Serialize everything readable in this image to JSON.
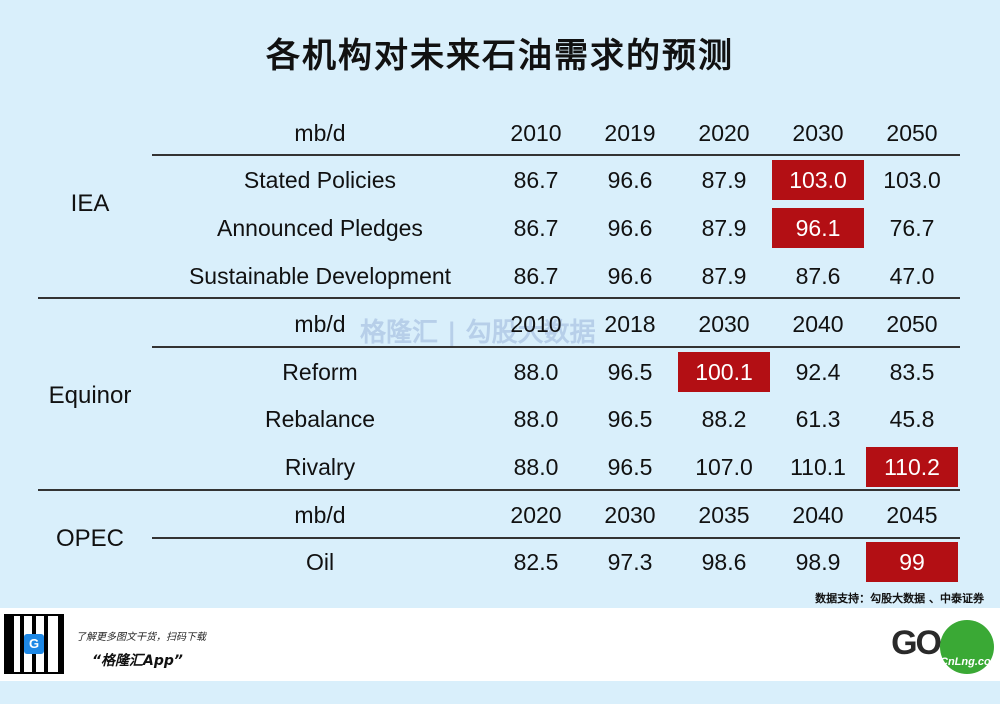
{
  "title": "各机构对未来石油需求的预测",
  "iea": {
    "group": "IEA",
    "header": {
      "label": "mb/d",
      "cols": [
        "2010",
        "2019",
        "2020",
        "2030",
        "2050"
      ]
    },
    "rows": [
      {
        "label": "Stated Policies",
        "values": [
          "86.7",
          "96.6",
          "87.9",
          "103.0",
          "103.0"
        ],
        "highlight": [
          3
        ]
      },
      {
        "label": "Announced Pledges",
        "values": [
          "86.7",
          "96.6",
          "87.9",
          "96.1",
          "76.7"
        ],
        "highlight": [
          3
        ]
      },
      {
        "label": "Sustainable Development",
        "values": [
          "86.7",
          "96.6",
          "87.9",
          "87.6",
          "47.0"
        ],
        "highlight": []
      }
    ]
  },
  "equinor": {
    "group": "Equinor",
    "header": {
      "label": "mb/d",
      "cols": [
        "2010",
        "2018",
        "2030",
        "2040",
        "2050"
      ]
    },
    "rows": [
      {
        "label": "Reform",
        "values": [
          "88.0",
          "96.5",
          "100.1",
          "92.4",
          "83.5"
        ],
        "highlight": [
          2
        ]
      },
      {
        "label": "Rebalance",
        "values": [
          "88.0",
          "96.5",
          "88.2",
          "61.3",
          "45.8"
        ],
        "highlight": []
      },
      {
        "label": "Rivalry",
        "values": [
          "88.0",
          "96.5",
          "107.0",
          "110.1",
          "110.2"
        ],
        "highlight": [
          4
        ]
      }
    ]
  },
  "opec": {
    "group": "OPEC",
    "header": {
      "label": "mb/d",
      "cols": [
        "2020",
        "2030",
        "2035",
        "2040",
        "2045"
      ]
    },
    "rows": [
      {
        "label": "Oil",
        "values": [
          "82.5",
          "97.3",
          "98.6",
          "98.9",
          "99"
        ],
        "highlight": [
          4
        ]
      }
    ]
  },
  "source": "数据支持：勾股大数据 、中泰证券",
  "watermark": "格隆汇 | 勾股大数据",
  "footer": {
    "tagline": "了解更多图文干货，扫码下载",
    "app_name": "“格隆汇App”",
    "brand": "GO",
    "cnlng": "CnLng.com"
  },
  "colors": {
    "background": "#d9effb",
    "highlight": "#b30f14"
  }
}
